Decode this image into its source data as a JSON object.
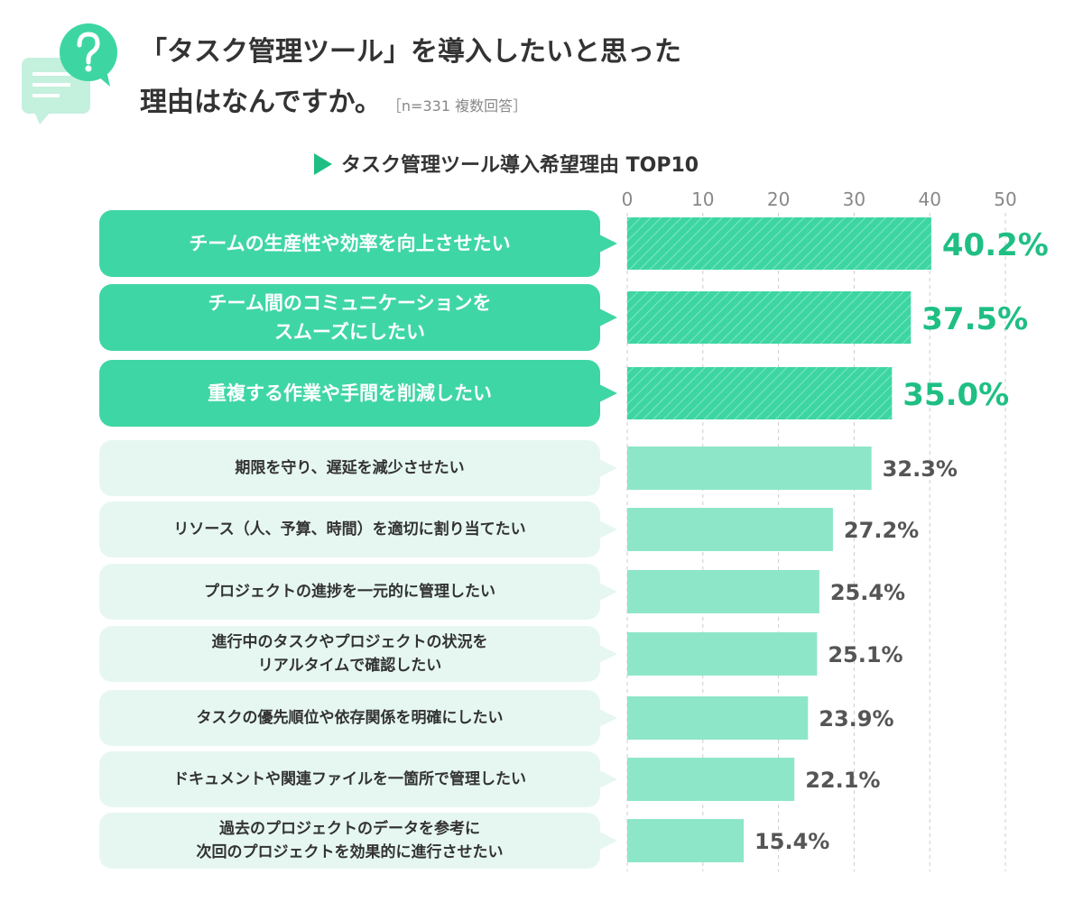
{
  "chart_data": {
    "type": "bar",
    "title_lines": [
      "「タスク管理ツール」を導入したいと思った",
      "理由はなんですか。"
    ],
    "note": "［n=331  複数回答］",
    "subtitle": "タスク管理ツール導入希望理由 TOP10",
    "categories": [
      "チームの生産性や効率を向上させたい",
      "チーム間のコミュニケーションを\nスムーズにしたい",
      "重複する作業や手間を削減したい",
      "期限を守り、遅延を減少させたい",
      "リソース（人、予算、時間）を適切に割り当てたい",
      "プロジェクトの進捗を一元的に管理したい",
      "進行中のタスクやプロジェクトの状況を\nリアルタイムで確認したい",
      "タスクの優先順位や依存関係を明確にしたい",
      "ドキュメントや関連ファイルを一箇所で管理したい",
      "過去のプロジェクトのデータを参考に\n次回のプロジェクトを効果的に進行させたい"
    ],
    "values": [
      40.2,
      37.5,
      35.0,
      32.3,
      27.2,
      25.4,
      25.1,
      23.9,
      22.1,
      15.4
    ],
    "value_labels": [
      "40.2%",
      "37.5%",
      "35.0%",
      "32.3%",
      "27.2%",
      "25.4%",
      "25.1%",
      "23.9%",
      "22.1%",
      "15.4%"
    ],
    "colors": [
      "#3dd6a3",
      "#3dd6a3",
      "#3dd6a3",
      "#8ee6c9",
      "#8ee6c9",
      "#8ee6c9",
      "#8ee6c9",
      "#8ee6c9",
      "#8ee6c9",
      "#8ee6c9"
    ],
    "xlim": [
      0,
      50
    ],
    "xticks": [
      0,
      10,
      20,
      30,
      40,
      50
    ],
    "grid": true,
    "orientation": "horizontal"
  }
}
